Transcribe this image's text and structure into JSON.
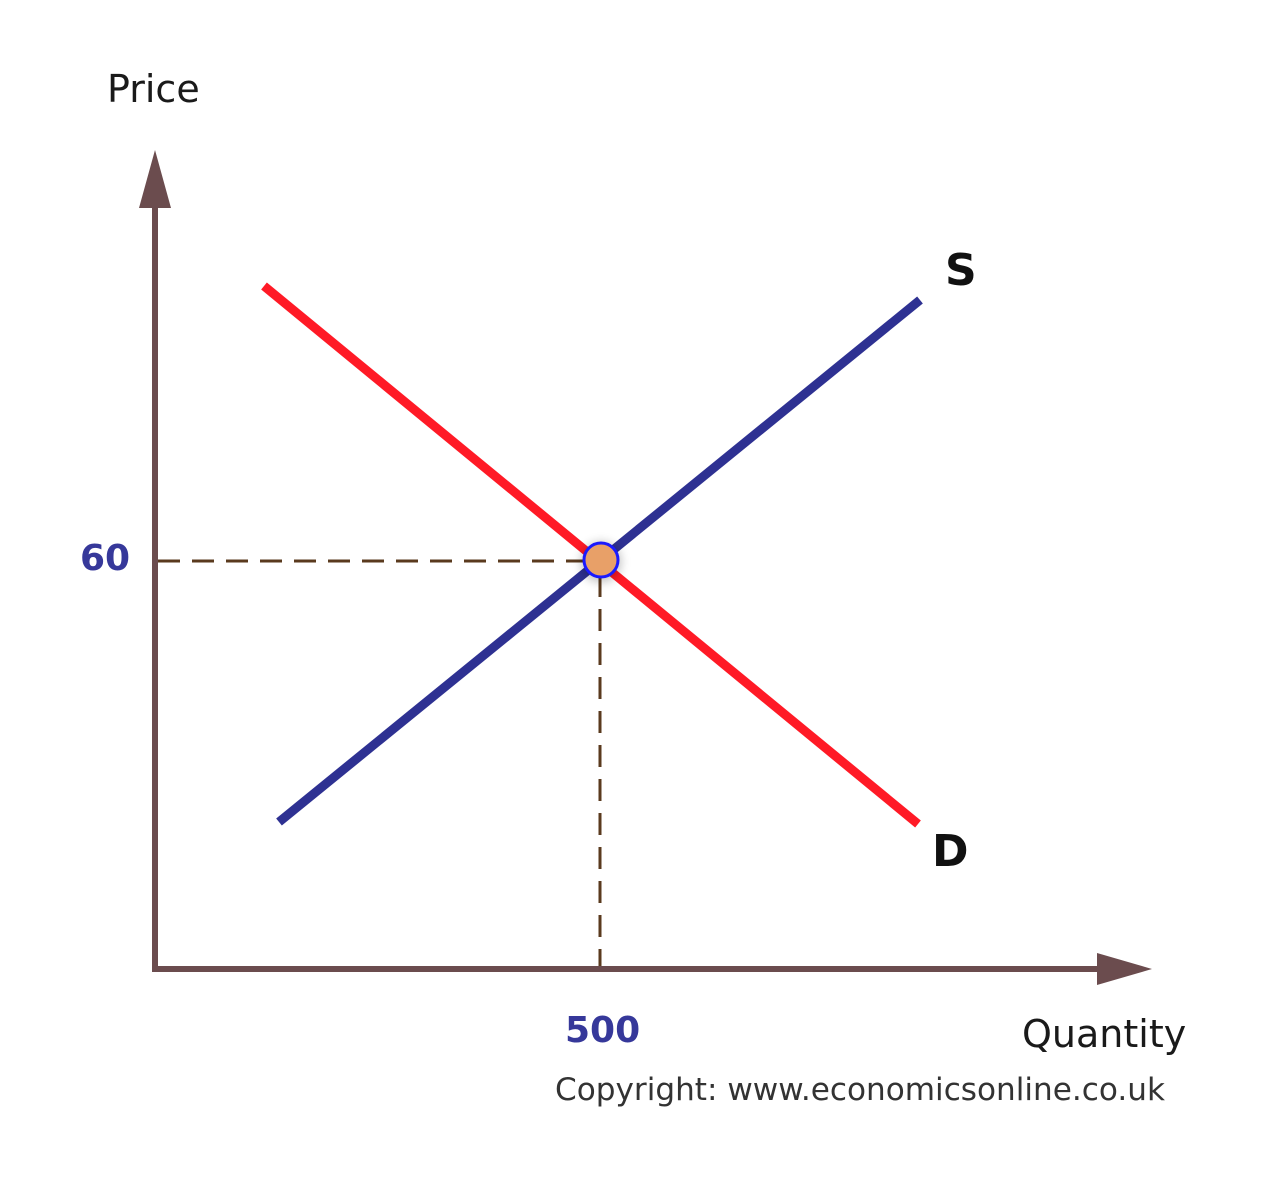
{
  "diagram": {
    "y_axis_label": "Price",
    "x_axis_label": "Quantity",
    "supply_label": "S",
    "demand_label": "D",
    "equilibrium_price": "60",
    "equilibrium_quantity": "500",
    "copyright": "Copyright: www.economicsonline.co.uk"
  },
  "colors": {
    "axis": "#6b4c4e",
    "supply": "#2e3192",
    "demand": "#ff1a26",
    "guide": "#5a3a1e",
    "equilibrium_fill": "#e8a068",
    "equilibrium_stroke": "#1a1aff",
    "value_text": "#36389a"
  }
}
